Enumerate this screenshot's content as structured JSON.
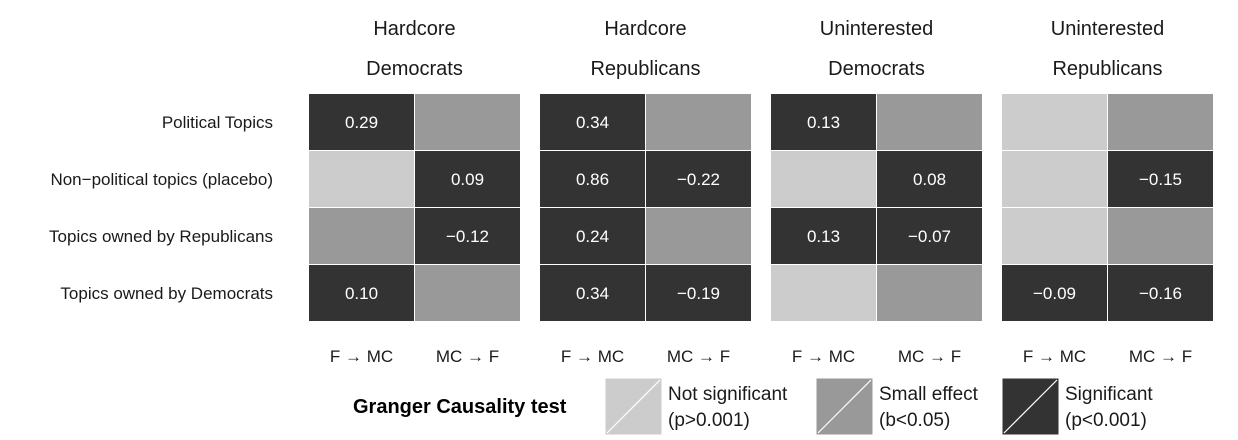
{
  "chart_data": {
    "type": "heatmap",
    "panels": [
      {
        "title_line1": "Hardcore",
        "title_line2": "Democrats",
        "cells": [
          [
            "sig",
            "small"
          ],
          [
            "ns",
            "sig"
          ],
          [
            "small",
            "sig"
          ],
          [
            "sig",
            "small"
          ]
        ],
        "labels": [
          [
            "0.29",
            ""
          ],
          [
            "",
            "0.09"
          ],
          [
            "",
            "−0.12"
          ],
          [
            "0.10",
            ""
          ]
        ]
      },
      {
        "title_line1": "Hardcore",
        "title_line2": "Republicans",
        "cells": [
          [
            "sig",
            "small"
          ],
          [
            "sig",
            "sig"
          ],
          [
            "sig",
            "small"
          ],
          [
            "sig",
            "sig"
          ]
        ],
        "labels": [
          [
            "0.34",
            ""
          ],
          [
            "0.86",
            "−0.22"
          ],
          [
            "0.24",
            ""
          ],
          [
            "0.34",
            "−0.19"
          ]
        ]
      },
      {
        "title_line1": "Uninterested",
        "title_line2": "Democrats",
        "cells": [
          [
            "sig",
            "small"
          ],
          [
            "ns",
            "sig"
          ],
          [
            "sig",
            "sig"
          ],
          [
            "ns",
            "small"
          ]
        ],
        "labels": [
          [
            "0.13",
            ""
          ],
          [
            "",
            "0.08"
          ],
          [
            "0.13",
            "−0.07"
          ],
          [
            "",
            ""
          ]
        ]
      },
      {
        "title_line1": "Uninterested",
        "title_line2": "Republicans",
        "cells": [
          [
            "ns",
            "small"
          ],
          [
            "ns",
            "sig"
          ],
          [
            "ns",
            "small"
          ],
          [
            "sig",
            "sig"
          ]
        ],
        "labels": [
          [
            "",
            ""
          ],
          [
            "",
            "−0.15"
          ],
          [
            "",
            ""
          ],
          [
            "−0.09",
            "−0.16"
          ]
        ]
      }
    ],
    "rows": [
      "Political Topics",
      "Non−political topics (placebo)",
      "Topics owned by Republicans",
      "Topics owned by Democrats"
    ],
    "columns": [
      "F → MC",
      "MC → F"
    ],
    "legend": {
      "title": "Granger Causality test",
      "items": [
        {
          "key": "ns",
          "line1": "Not significant",
          "line2": "(p>0.001)"
        },
        {
          "key": "small",
          "line1": "Small effect",
          "line2": "(b<0.05)"
        },
        {
          "key": "sig",
          "line1": "Significant",
          "line2": "(p<0.001)"
        }
      ]
    },
    "colors": {
      "ns": "#cccccc",
      "small": "#999999",
      "sig": "#333333"
    }
  }
}
